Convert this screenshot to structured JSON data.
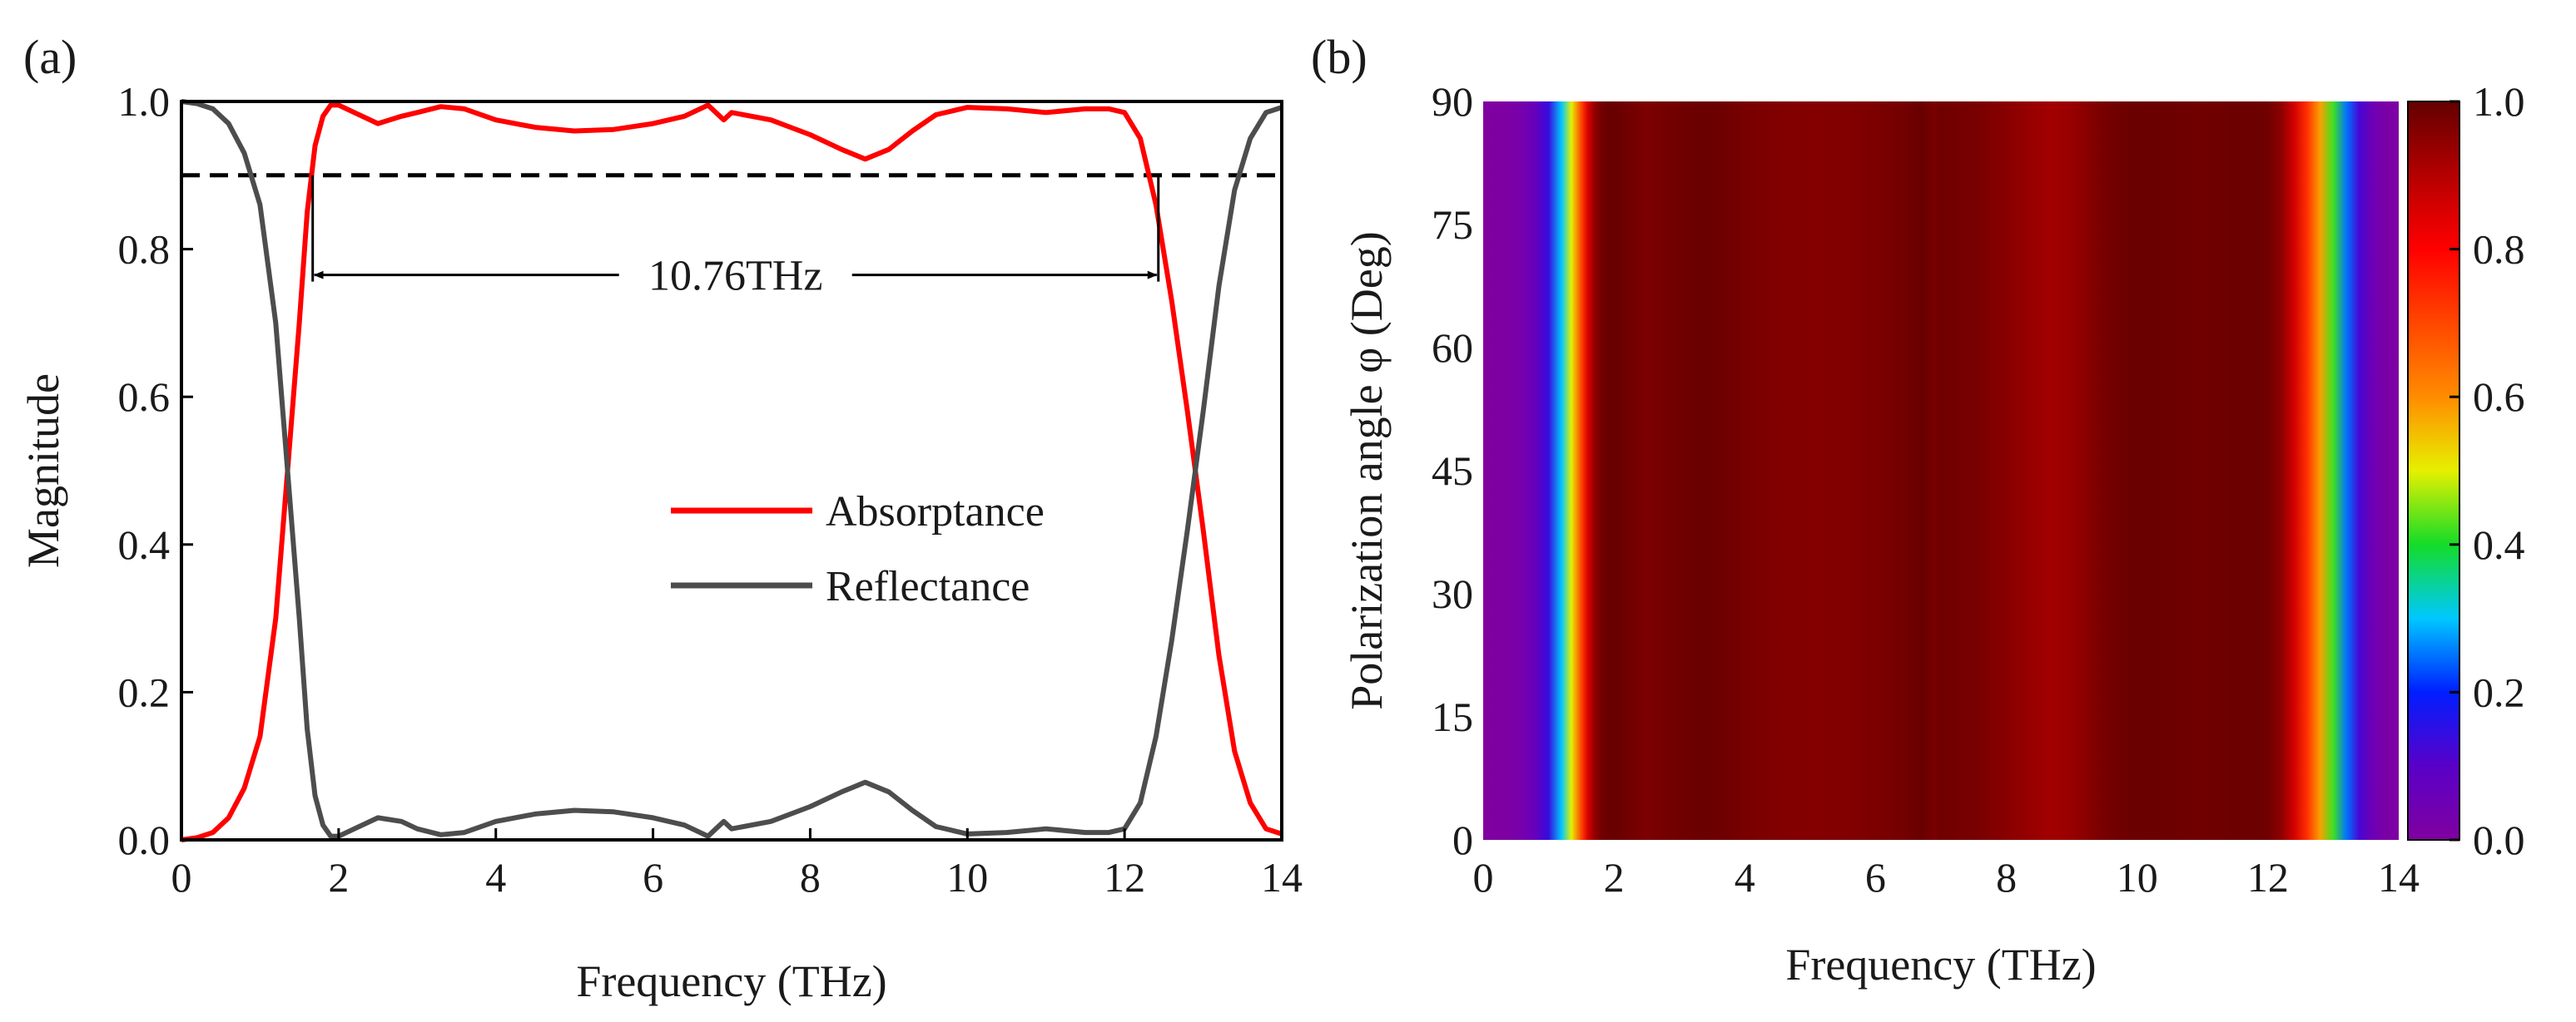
{
  "chart_data": [
    {
      "panel_label": "(a)",
      "type": "line",
      "xlabel": "Frequency (THz)",
      "ylabel": "Magnitude",
      "xlim": [
        0,
        14
      ],
      "ylim": [
        0,
        1.0
      ],
      "xticks": [
        "0",
        "2",
        "4",
        "6",
        "8",
        "10",
        "12",
        "14"
      ],
      "yticks": [
        "0.0",
        "0.2",
        "0.4",
        "0.6",
        "0.8",
        "1.0"
      ],
      "legend_position": "center-right",
      "series": [
        {
          "name": "Absorptance",
          "color": "#ff0000",
          "x": [
            0,
            0.2,
            0.4,
            0.6,
            0.8,
            1.0,
            1.2,
            1.35,
            1.5,
            1.6,
            1.7,
            1.8,
            1.9,
            2.0,
            2.2,
            2.5,
            2.8,
            3.0,
            3.3,
            3.6,
            4.0,
            4.5,
            5.0,
            5.5,
            6.0,
            6.4,
            6.7,
            6.8,
            6.9,
            7.0,
            7.5,
            8.0,
            8.4,
            8.7,
            9.0,
            9.3,
            9.6,
            10.0,
            10.5,
            11.0,
            11.5,
            11.8,
            12.0,
            12.2,
            12.4,
            12.6,
            12.8,
            13.0,
            13.2,
            13.4,
            13.6,
            13.8,
            14.0
          ],
          "y": [
            0.0,
            0.003,
            0.01,
            0.03,
            0.07,
            0.14,
            0.3,
            0.5,
            0.7,
            0.85,
            0.94,
            0.98,
            0.995,
            0.995,
            0.985,
            0.97,
            0.98,
            0.985,
            0.993,
            0.99,
            0.975,
            0.965,
            0.96,
            0.962,
            0.97,
            0.98,
            0.995,
            0.985,
            0.975,
            0.985,
            0.975,
            0.955,
            0.935,
            0.922,
            0.935,
            0.96,
            0.982,
            0.992,
            0.99,
            0.985,
            0.99,
            0.99,
            0.985,
            0.95,
            0.86,
            0.73,
            0.58,
            0.42,
            0.25,
            0.12,
            0.05,
            0.015,
            0.008
          ]
        },
        {
          "name": "Reflectance",
          "color": "#4d4d4d",
          "x": [
            0,
            0.2,
            0.4,
            0.6,
            0.8,
            1.0,
            1.2,
            1.35,
            1.5,
            1.6,
            1.7,
            1.8,
            1.9,
            2.0,
            2.2,
            2.5,
            2.8,
            3.0,
            3.3,
            3.6,
            4.0,
            4.5,
            5.0,
            5.5,
            6.0,
            6.4,
            6.7,
            6.8,
            6.9,
            7.0,
            7.5,
            8.0,
            8.4,
            8.7,
            9.0,
            9.3,
            9.6,
            10.0,
            10.5,
            11.0,
            11.5,
            11.8,
            12.0,
            12.2,
            12.4,
            12.6,
            12.8,
            13.0,
            13.2,
            13.4,
            13.6,
            13.8,
            14.0
          ],
          "y": [
            1.0,
            0.997,
            0.99,
            0.97,
            0.93,
            0.86,
            0.7,
            0.5,
            0.3,
            0.15,
            0.06,
            0.02,
            0.005,
            0.005,
            0.015,
            0.03,
            0.025,
            0.015,
            0.007,
            0.01,
            0.025,
            0.035,
            0.04,
            0.038,
            0.03,
            0.02,
            0.005,
            0.015,
            0.025,
            0.015,
            0.025,
            0.045,
            0.065,
            0.078,
            0.065,
            0.04,
            0.018,
            0.008,
            0.01,
            0.015,
            0.01,
            0.01,
            0.015,
            0.05,
            0.14,
            0.27,
            0.42,
            0.58,
            0.75,
            0.88,
            0.95,
            0.985,
            0.992
          ]
        }
      ],
      "reference_line": {
        "y": 0.9,
        "style": "dashed"
      },
      "annotation": {
        "text": "10.76THz",
        "x_start": 1.67,
        "x_end": 12.43,
        "y": 0.765
      }
    },
    {
      "panel_label": "(b)",
      "type": "heatmap",
      "xlabel": "Frequency (THz)",
      "ylabel": "Polarization angle φ (Deg)",
      "xlim": [
        0,
        14
      ],
      "ylim": [
        0,
        90
      ],
      "xticks": [
        "0",
        "2",
        "4",
        "6",
        "8",
        "10",
        "12",
        "14"
      ],
      "yticks": [
        "0",
        "15",
        "30",
        "45",
        "60",
        "75",
        "90"
      ],
      "colorbar": {
        "range": [
          0,
          1.0
        ],
        "ticks": [
          "0.0",
          "0.2",
          "0.4",
          "0.6",
          "0.8",
          "1.0"
        ]
      },
      "note": "Absorptance is independent of polarization angle; each frequency column uses the panel (a) Absorptance value."
    }
  ]
}
